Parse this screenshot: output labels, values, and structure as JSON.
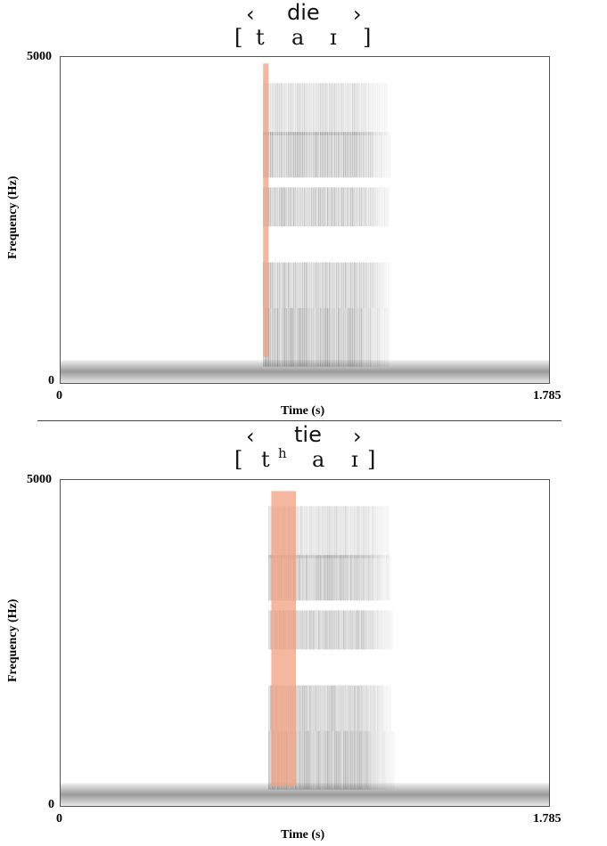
{
  "chart_data": [
    {
      "type": "spectrogram",
      "title": {
        "open": "‹",
        "word": "die",
        "close": "›"
      },
      "transcription": [
        "[",
        "t",
        "a",
        "ɪ",
        "]"
      ],
      "xlabel": "Time (s)",
      "ylabel": "Frequency (Hz)",
      "x_ticks": [
        "0",
        "1.785"
      ],
      "y_ticks": [
        "5000",
        "0"
      ],
      "xlim": [
        0,
        1.785
      ],
      "ylim": [
        0,
        5000
      ],
      "highlight": {
        "x_start": 0.74,
        "x_end": 0.76,
        "y_start": 400,
        "y_end": 4900,
        "color": "#f2a07e"
      },
      "voicing_bar": {
        "y_start": 0,
        "y_end": 350
      },
      "speech_region": {
        "x_start": 0.74,
        "x_end": 1.22
      }
    },
    {
      "type": "spectrogram",
      "title": {
        "open": "‹",
        "word": "tie",
        "close": "›"
      },
      "transcription": [
        "[",
        "t",
        "h",
        "a",
        "ɪ",
        "]"
      ],
      "xlabel": "Time (s)",
      "ylabel": "Frequency (Hz)",
      "x_ticks": [
        "0",
        "1.785"
      ],
      "y_ticks": [
        "5000",
        "0"
      ],
      "xlim": [
        0,
        1.785
      ],
      "ylim": [
        0,
        5000
      ],
      "highlight": {
        "x_start": 0.77,
        "x_end": 0.86,
        "y_start": 300,
        "y_end": 4830,
        "color": "#f2a07e"
      },
      "voicing_bar": {
        "y_start": 0,
        "y_end": 350
      },
      "speech_region": {
        "x_start": 0.76,
        "x_end": 1.23
      }
    }
  ]
}
